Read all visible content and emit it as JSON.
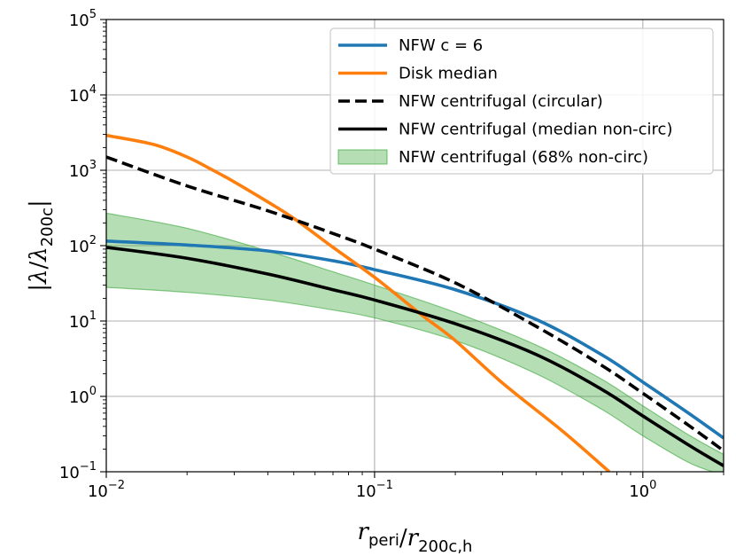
{
  "chart_data": {
    "type": "line",
    "xscale": "log",
    "yscale": "log",
    "xlim": [
      0.01,
      2.0
    ],
    "ylim": [
      0.1,
      100000
    ],
    "grid": true,
    "xlabel": "r_peri/r_200c,h",
    "ylabel": "|λ/λ_200c|",
    "x_ticks": [
      {
        "value": 0.01,
        "base": "10",
        "exp": "−2"
      },
      {
        "value": 0.1,
        "base": "10",
        "exp": "−1"
      },
      {
        "value": 1,
        "base": "10",
        "exp": "0"
      }
    ],
    "y_ticks": [
      {
        "value": 0.1,
        "base": "10",
        "exp": "−1"
      },
      {
        "value": 1,
        "base": "10",
        "exp": "0"
      },
      {
        "value": 10,
        "base": "10",
        "exp": "1"
      },
      {
        "value": 100,
        "base": "10",
        "exp": "2"
      },
      {
        "value": 1000,
        "base": "10",
        "exp": "3"
      },
      {
        "value": 10000,
        "base": "10",
        "exp": "4"
      },
      {
        "value": 100000,
        "base": "10",
        "exp": "5"
      }
    ],
    "legend_position": "top-right",
    "series": [
      {
        "name": "NFW c = 6",
        "color": "#1f77b4",
        "style": "solid",
        "kind": "line",
        "x": [
          0.01,
          0.02,
          0.04,
          0.07,
          0.1,
          0.2,
          0.4,
          0.7,
          1.0,
          1.5,
          2.0
        ],
        "y": [
          115,
          102,
          85,
          63,
          48,
          26,
          10.5,
          3.6,
          1.55,
          0.58,
          0.28
        ]
      },
      {
        "name": "Disk median",
        "color": "#ff7f0e",
        "style": "solid",
        "kind": "line",
        "x": [
          0.01,
          0.015,
          0.02,
          0.025,
          0.03,
          0.04,
          0.05,
          0.07,
          0.1,
          0.15,
          0.2,
          0.3,
          0.5,
          0.75
        ],
        "y": [
          2900,
          2200,
          1500,
          1000,
          700,
          380,
          230,
          95,
          38,
          12,
          5.5,
          1.5,
          0.35,
          0.1
        ]
      },
      {
        "name": "NFW centrifugal (circular)",
        "color": "#000000",
        "style": "dashed",
        "kind": "line",
        "x": [
          0.01,
          0.02,
          0.04,
          0.07,
          0.1,
          0.2,
          0.4,
          0.7,
          1.0,
          1.5,
          2.0
        ],
        "y": [
          1500,
          620,
          290,
          145,
          90,
          32,
          8.5,
          2.6,
          1.1,
          0.4,
          0.19
        ]
      },
      {
        "name": "NFW centrifugal (median non-circ)",
        "color": "#000000",
        "style": "solid",
        "kind": "line",
        "x": [
          0.01,
          0.02,
          0.04,
          0.07,
          0.1,
          0.2,
          0.4,
          0.7,
          1.0,
          1.5,
          2.0
        ],
        "y": [
          95,
          68,
          42,
          26,
          19,
          9.2,
          3.6,
          1.25,
          0.55,
          0.22,
          0.12
        ]
      },
      {
        "name": "NFW centrifugal (68% non-circ)",
        "color": "#2ca02c",
        "style": "band",
        "kind": "band",
        "x": [
          0.01,
          0.02,
          0.04,
          0.07,
          0.1,
          0.2,
          0.4,
          0.7,
          1.0,
          1.5,
          2.0
        ],
        "y_low": [
          28,
          24,
          19,
          14,
          11,
          5.5,
          2.0,
          0.68,
          0.3,
          0.13,
          0.09
        ],
        "y_high": [
          270,
          170,
          85,
          45,
          30,
          13,
          4.8,
          1.7,
          0.75,
          0.3,
          0.17
        ]
      }
    ]
  }
}
